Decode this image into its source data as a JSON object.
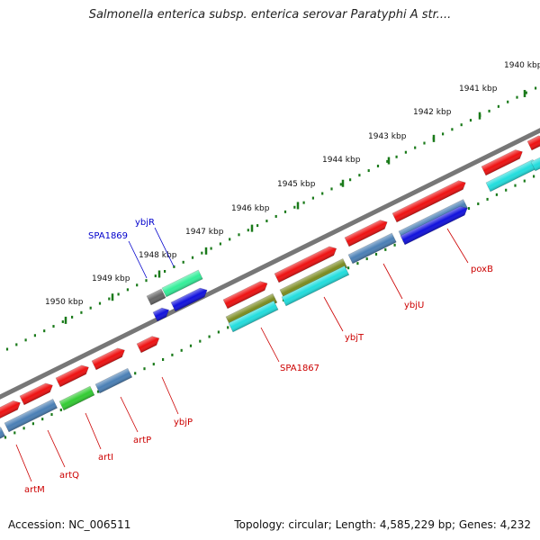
{
  "title": "Salmonella enterica subsp. enterica serovar Paratyphi A str....",
  "footer": {
    "accession": "Accession: NC_006511",
    "summary": "Topology: circular; Length: 4,585,229 bp; Genes: 4,232"
  },
  "ruler": [
    {
      "label": "1940 kbp"
    },
    {
      "label": "1941 kbp"
    },
    {
      "label": "1942 kbp"
    },
    {
      "label": "1943 kbp"
    },
    {
      "label": "1944 kbp"
    },
    {
      "label": "1945 kbp"
    },
    {
      "label": "1946 kbp"
    },
    {
      "label": "1947 kbp"
    },
    {
      "label": "1948 kbp"
    },
    {
      "label": "1949 kbp"
    },
    {
      "label": "1950 kbp"
    }
  ],
  "gene_labels": [
    {
      "name": "ybjR",
      "color": "#0000cc"
    },
    {
      "name": "SPA1869",
      "color": "#0000cc"
    },
    {
      "name": "poxB",
      "color": "#cc0000"
    },
    {
      "name": "ybjU",
      "color": "#cc0000"
    },
    {
      "name": "ybjT",
      "color": "#cc0000"
    },
    {
      "name": "SPA1867",
      "color": "#cc0000"
    },
    {
      "name": "ybjP",
      "color": "#cc0000"
    },
    {
      "name": "artP",
      "color": "#cc0000"
    },
    {
      "name": "artI",
      "color": "#cc0000"
    },
    {
      "name": "artQ",
      "color": "#cc0000"
    },
    {
      "name": "artM",
      "color": "#cc0000"
    }
  ],
  "colors": {
    "backbone": "#777777",
    "ruler_ticks": "#1a7a1a",
    "gene_red": "#ee1111",
    "gene_steel": "#4a7fb5",
    "gene_cyan": "#22dddd",
    "gene_blue": "#1111dd",
    "gene_green": "#33cc33",
    "gene_olive": "#7a8a20",
    "gene_mint": "#33ee99",
    "gene_gray": "#666666"
  }
}
